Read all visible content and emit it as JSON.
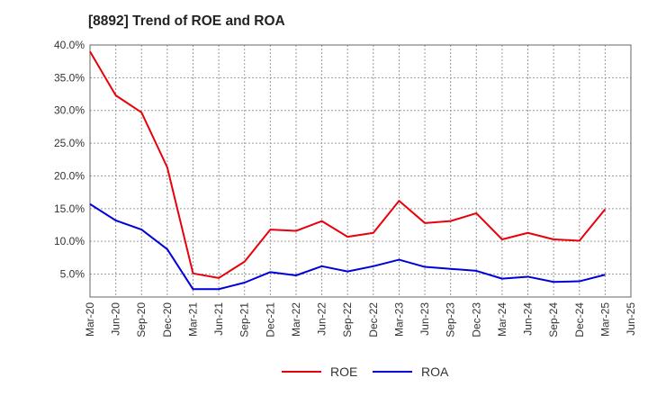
{
  "title": "[8892]  Trend of ROE and ROA",
  "colors": {
    "roe": "#e8000b",
    "roa": "#0000d8",
    "grid": "#9a9a9a",
    "axis": "#666666"
  },
  "chart_data": {
    "type": "line",
    "title": "[8892]  Trend of ROE and ROA",
    "xlabel": "",
    "ylabel": "",
    "ylim": [
      1.5,
      40.0
    ],
    "yticks": [
      "5.0%",
      "10.0%",
      "15.0%",
      "20.0%",
      "25.0%",
      "30.0%",
      "35.0%",
      "40.0%"
    ],
    "ytick_values": [
      5,
      10,
      15,
      20,
      25,
      30,
      35,
      40
    ],
    "categories": [
      "Mar-20",
      "Jun-20",
      "Sep-20",
      "Dec-20",
      "Mar-21",
      "Jun-21",
      "Sep-21",
      "Dec-21",
      "Mar-22",
      "Jun-22",
      "Sep-22",
      "Dec-22",
      "Mar-23",
      "Jun-23",
      "Sep-23",
      "Dec-23",
      "Mar-24",
      "Jun-24",
      "Sep-24",
      "Dec-24",
      "Mar-25",
      "Jun-25"
    ],
    "grid": true,
    "legend": "bottom-center",
    "series": [
      {
        "name": "ROE",
        "color": "#e8000b",
        "values": [
          39.0,
          32.3,
          29.7,
          21.3,
          5.1,
          4.4,
          6.9,
          11.8,
          11.6,
          13.1,
          10.7,
          11.3,
          16.2,
          12.8,
          13.1,
          14.3,
          10.3,
          11.3,
          10.3,
          10.1,
          14.9,
          null
        ]
      },
      {
        "name": "ROA",
        "color": "#0000d8",
        "values": [
          15.7,
          13.2,
          11.8,
          8.8,
          2.7,
          2.7,
          3.7,
          5.3,
          4.8,
          6.2,
          5.4,
          6.2,
          7.2,
          6.1,
          5.8,
          5.5,
          4.3,
          4.6,
          3.8,
          3.9,
          4.9,
          null
        ]
      }
    ]
  },
  "legend": {
    "roe_label": "ROE",
    "roa_label": "ROA"
  }
}
